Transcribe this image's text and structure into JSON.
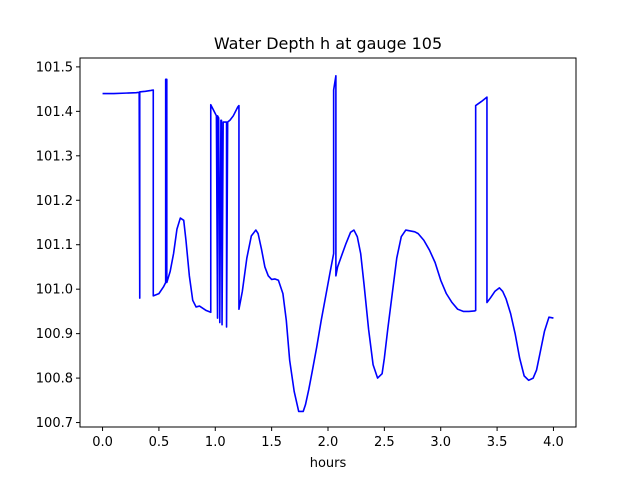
{
  "chart_data": {
    "type": "line",
    "title": "Water Depth h at gauge 105",
    "xlabel": "hours",
    "ylabel": "",
    "xlim": [
      -0.2,
      4.2
    ],
    "ylim": [
      100.69,
      101.52
    ],
    "xticks": [
      0.0,
      0.5,
      1.0,
      1.5,
      2.0,
      2.5,
      3.0,
      3.5,
      4.0
    ],
    "xtick_labels": [
      "0.0",
      "0.5",
      "1.0",
      "1.5",
      "2.0",
      "2.5",
      "3.0",
      "3.5",
      "4.0"
    ],
    "yticks": [
      100.7,
      100.8,
      100.9,
      101.0,
      101.1,
      101.2,
      101.3,
      101.4,
      101.5
    ],
    "ytick_labels": [
      "100.7",
      "100.8",
      "100.9",
      "101.0",
      "101.1",
      "101.2",
      "101.3",
      "101.4",
      "101.5"
    ],
    "grid": false,
    "series": [
      {
        "color": "#0000ff",
        "x": [
          0.0,
          0.1,
          0.2,
          0.3,
          0.325,
          0.33,
          0.33,
          0.335,
          0.38,
          0.43,
          0.45,
          0.45,
          0.5,
          0.54,
          0.56,
          0.56,
          0.57,
          0.57,
          0.6,
          0.63,
          0.66,
          0.69,
          0.72,
          0.74,
          0.77,
          0.8,
          0.83,
          0.86,
          0.89,
          0.92,
          0.96,
          0.96,
          0.99,
          1.01,
          1.02,
          1.02,
          1.03,
          1.04,
          1.05,
          1.055,
          1.06,
          1.07,
          1.1,
          1.1,
          1.11,
          1.13,
          1.16,
          1.2,
          1.21,
          1.21,
          1.24,
          1.28,
          1.32,
          1.36,
          1.38,
          1.41,
          1.44,
          1.47,
          1.5,
          1.53,
          1.56,
          1.6,
          1.63,
          1.66,
          1.7,
          1.74,
          1.78,
          1.8,
          1.83,
          1.86,
          1.9,
          1.94,
          1.98,
          2.02,
          2.05,
          2.05,
          2.07,
          2.07,
          2.085,
          2.12,
          2.16,
          2.2,
          2.23,
          2.26,
          2.29,
          2.32,
          2.36,
          2.4,
          2.44,
          2.48,
          2.5,
          2.53,
          2.57,
          2.61,
          2.65,
          2.69,
          2.73,
          2.77,
          2.8,
          2.85,
          2.9,
          2.95,
          3.0,
          3.05,
          3.1,
          3.15,
          3.2,
          3.25,
          3.3,
          3.31,
          3.31,
          3.36,
          3.41,
          3.41,
          3.44,
          3.48,
          3.52,
          3.55,
          3.58,
          3.62,
          3.66,
          3.7,
          3.74,
          3.78,
          3.82,
          3.85,
          3.88,
          3.92,
          3.96,
          4.0
        ],
        "y": [
          101.44,
          101.44,
          101.441,
          101.442,
          101.443,
          100.98,
          101.444,
          101.444,
          101.445,
          101.447,
          101.448,
          100.985,
          100.99,
          101.005,
          101.015,
          101.472,
          101.472,
          101.015,
          101.04,
          101.08,
          101.135,
          101.16,
          101.155,
          101.11,
          101.03,
          100.975,
          100.96,
          100.962,
          100.957,
          100.952,
          100.948,
          101.415,
          101.4,
          101.39,
          100.935,
          101.39,
          101.385,
          100.925,
          101.38,
          101.38,
          100.92,
          101.376,
          101.376,
          100.915,
          101.376,
          101.38,
          101.39,
          101.41,
          101.413,
          100.955,
          100.995,
          101.07,
          101.12,
          101.133,
          101.125,
          101.09,
          101.05,
          101.03,
          101.022,
          101.023,
          101.02,
          100.99,
          100.93,
          100.84,
          100.77,
          100.725,
          100.725,
          100.74,
          100.775,
          100.815,
          100.87,
          100.93,
          100.985,
          101.04,
          101.08,
          101.448,
          101.48,
          101.03,
          101.05,
          101.075,
          101.103,
          101.128,
          101.133,
          101.118,
          101.08,
          101.01,
          100.91,
          100.83,
          100.8,
          100.81,
          100.845,
          100.91,
          100.99,
          101.07,
          101.118,
          101.133,
          101.131,
          101.129,
          101.125,
          101.11,
          101.088,
          101.06,
          101.02,
          100.99,
          100.97,
          100.955,
          100.95,
          100.95,
          100.951,
          100.952,
          101.413,
          101.422,
          101.432,
          100.97,
          100.98,
          100.995,
          101.003,
          100.995,
          100.978,
          100.945,
          100.9,
          100.845,
          100.805,
          100.795,
          100.8,
          100.818,
          100.855,
          100.905,
          100.937,
          100.935
        ]
      }
    ]
  }
}
